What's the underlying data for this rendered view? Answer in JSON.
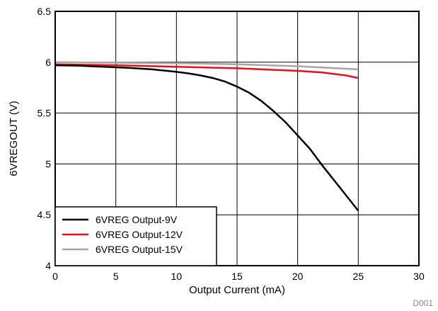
{
  "chart_data": {
    "type": "line",
    "title": "",
    "xlabel": "Output Current (mA)",
    "ylabel": "6VREGOUT (V)",
    "xlim": [
      0,
      30
    ],
    "ylim": [
      4,
      6.5
    ],
    "xticks": [
      0,
      5,
      10,
      15,
      20,
      25,
      30
    ],
    "yticks": [
      4,
      4.5,
      5,
      5.5,
      6,
      6.5
    ],
    "grid": true,
    "legend_position": "bottom-left",
    "annotation": "D001",
    "series": [
      {
        "name": "6VREG Output-9V",
        "color": "#000000",
        "x": [
          0,
          2,
          4,
          6,
          8,
          10,
          11,
          12,
          13,
          14,
          15,
          16,
          17,
          18,
          19,
          20,
          21,
          22,
          23,
          24,
          25
        ],
        "y": [
          5.97,
          5.965,
          5.955,
          5.945,
          5.93,
          5.905,
          5.89,
          5.87,
          5.845,
          5.81,
          5.76,
          5.7,
          5.62,
          5.52,
          5.41,
          5.28,
          5.15,
          4.99,
          4.84,
          4.69,
          4.54
        ]
      },
      {
        "name": "6VREG Output-12V",
        "color": "#e8101a",
        "x": [
          0,
          5,
          10,
          15,
          20,
          22,
          24,
          25
        ],
        "y": [
          5.98,
          5.97,
          5.955,
          5.94,
          5.915,
          5.9,
          5.87,
          5.845
        ]
      },
      {
        "name": "6VREG Output-15V",
        "color": "#a6a6a6",
        "x": [
          0,
          5,
          10,
          15,
          20,
          25
        ],
        "y": [
          6.0,
          5.995,
          5.99,
          5.98,
          5.96,
          5.93
        ]
      }
    ]
  }
}
